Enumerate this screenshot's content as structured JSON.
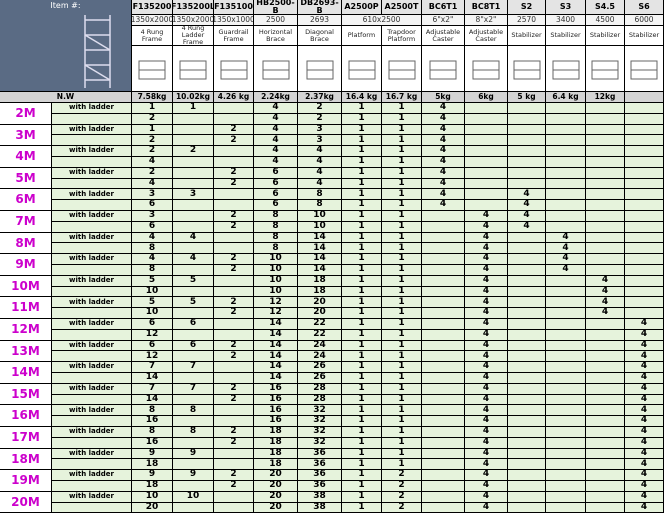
{
  "header": {
    "item_label": "Item #:",
    "weight_label": "N.W",
    "columns": [
      {
        "item": "F135200",
        "size": "1350x2000",
        "description": "4 Rung Frame",
        "weight": "7.58kg"
      },
      {
        "item": "F135200L",
        "size": "1350x2000",
        "description": "4 Rung Ladder Frame",
        "weight": "10.02kg"
      },
      {
        "item": "F135100",
        "size": "1350x1000",
        "description": "Guardrail Frame",
        "weight": "4.26 kg"
      },
      {
        "item": "HB2500-B",
        "size": "2500",
        "description": "Horizontal Brace",
        "weight": "2.24kg"
      },
      {
        "item": "DB2693-B",
        "size": "2693",
        "description": "Diagonal Brace",
        "weight": "2.37kg"
      },
      {
        "item": "A2500P",
        "size": "610x2500",
        "description": "Platform",
        "weight": "16.4 kg"
      },
      {
        "item": "A2500T",
        "size": null,
        "description": "Trapdoor Platform",
        "weight": "16.7 kg"
      },
      {
        "item": "BC6T1",
        "size": "6\"x2\"",
        "description": "Adjustable Caster",
        "weight": "5kg"
      },
      {
        "item": "BC8T1",
        "size": "8\"x2\"",
        "description": "Adjustable Caster",
        "weight": "6kg"
      },
      {
        "item": "S2",
        "size": "2570",
        "description": "Stabilizer",
        "weight": "5 kg"
      },
      {
        "item": "S3",
        "size": "3400",
        "description": "Stabilizer",
        "weight": "6.4 kg"
      },
      {
        "item": "S4.5",
        "size": "4500",
        "description": "Stabilizer",
        "weight": "12kg"
      },
      {
        "item": "S6",
        "size": "6000",
        "description": "Stabilizer",
        "weight": null
      }
    ]
  },
  "groups": [
    {
      "height": "2M",
      "rows": [
        {
          "label": "with ladder",
          "cells": [
            1,
            1,
            null,
            4,
            2,
            1,
            1,
            4,
            null,
            null,
            null,
            null,
            null
          ]
        },
        {
          "cells": [
            2,
            null,
            null,
            4,
            2,
            1,
            1,
            4,
            null,
            null,
            null,
            null,
            null
          ]
        }
      ]
    },
    {
      "height": "3M",
      "rows": [
        {
          "label": "with ladder",
          "cells": [
            1,
            null,
            2,
            4,
            3,
            1,
            1,
            4,
            null,
            null,
            null,
            null,
            null
          ]
        },
        {
          "cells": [
            2,
            null,
            2,
            4,
            3,
            1,
            1,
            4,
            null,
            null,
            null,
            null,
            null
          ]
        }
      ]
    },
    {
      "height": "4M",
      "rows": [
        {
          "label": "with ladder",
          "cells": [
            2,
            2,
            null,
            4,
            4,
            1,
            1,
            4,
            null,
            null,
            null,
            null,
            null
          ]
        },
        {
          "cells": [
            4,
            null,
            null,
            4,
            4,
            1,
            1,
            4,
            null,
            null,
            null,
            null,
            null
          ]
        }
      ]
    },
    {
      "height": "5M",
      "rows": [
        {
          "label": "with ladder",
          "cells": [
            2,
            null,
            2,
            6,
            4,
            1,
            1,
            4,
            null,
            null,
            null,
            null,
            null
          ]
        },
        {
          "cells": [
            4,
            null,
            2,
            6,
            4,
            1,
            1,
            4,
            null,
            null,
            null,
            null,
            null
          ]
        }
      ]
    },
    {
      "height": "6M",
      "rows": [
        {
          "label": "with ladder",
          "cells": [
            3,
            3,
            null,
            6,
            8,
            1,
            1,
            4,
            null,
            4,
            null,
            null,
            null
          ]
        },
        {
          "cells": [
            6,
            null,
            null,
            6,
            8,
            1,
            1,
            4,
            null,
            4,
            null,
            null,
            null
          ]
        }
      ]
    },
    {
      "height": "7M",
      "rows": [
        {
          "label": "with ladder",
          "cells": [
            3,
            null,
            2,
            8,
            10,
            1,
            1,
            null,
            4,
            4,
            null,
            null,
            null
          ]
        },
        {
          "cells": [
            6,
            null,
            2,
            8,
            10,
            1,
            1,
            null,
            4,
            4,
            null,
            null,
            null
          ]
        }
      ]
    },
    {
      "height": "8M",
      "rows": [
        {
          "label": "with ladder",
          "cells": [
            4,
            4,
            null,
            8,
            14,
            1,
            1,
            null,
            4,
            null,
            4,
            null,
            null
          ]
        },
        {
          "cells": [
            8,
            null,
            null,
            8,
            14,
            1,
            1,
            null,
            4,
            null,
            4,
            null,
            null
          ]
        }
      ]
    },
    {
      "height": "9M",
      "rows": [
        {
          "label": "with ladder",
          "cells": [
            4,
            4,
            2,
            10,
            14,
            1,
            1,
            null,
            4,
            null,
            4,
            null,
            null
          ]
        },
        {
          "cells": [
            8,
            null,
            2,
            10,
            14,
            1,
            1,
            null,
            4,
            null,
            4,
            null,
            null
          ]
        }
      ]
    },
    {
      "height": "10M",
      "rows": [
        {
          "label": "with ladder",
          "cells": [
            5,
            5,
            null,
            10,
            18,
            1,
            1,
            null,
            4,
            null,
            null,
            4,
            null
          ]
        },
        {
          "cells": [
            10,
            null,
            null,
            10,
            18,
            1,
            1,
            null,
            4,
            null,
            null,
            4,
            null
          ]
        }
      ]
    },
    {
      "height": "11M",
      "rows": [
        {
          "label": "with ladder",
          "cells": [
            5,
            5,
            2,
            12,
            20,
            1,
            1,
            null,
            4,
            null,
            null,
            4,
            null
          ]
        },
        {
          "cells": [
            10,
            null,
            2,
            12,
            20,
            1,
            1,
            null,
            4,
            null,
            null,
            4,
            null
          ]
        }
      ]
    },
    {
      "height": "12M",
      "rows": [
        {
          "label": "with ladder",
          "cells": [
            6,
            6,
            null,
            14,
            22,
            1,
            1,
            null,
            4,
            null,
            null,
            null,
            4
          ]
        },
        {
          "cells": [
            12,
            null,
            null,
            14,
            22,
            1,
            1,
            null,
            4,
            null,
            null,
            null,
            4
          ]
        }
      ]
    },
    {
      "height": "13M",
      "rows": [
        {
          "label": "with ladder",
          "cells": [
            6,
            6,
            2,
            14,
            24,
            1,
            1,
            null,
            4,
            null,
            null,
            null,
            4
          ]
        },
        {
          "cells": [
            12,
            null,
            2,
            14,
            24,
            1,
            1,
            null,
            4,
            null,
            null,
            null,
            4
          ]
        }
      ]
    },
    {
      "height": "14M",
      "rows": [
        {
          "label": "with ladder",
          "cells": [
            7,
            7,
            null,
            14,
            26,
            1,
            1,
            null,
            4,
            null,
            null,
            null,
            4
          ]
        },
        {
          "cells": [
            14,
            null,
            null,
            14,
            26,
            1,
            1,
            null,
            4,
            null,
            null,
            null,
            4
          ]
        }
      ]
    },
    {
      "height": "15M",
      "rows": [
        {
          "label": "with ladder",
          "cells": [
            7,
            7,
            2,
            16,
            28,
            1,
            1,
            null,
            4,
            null,
            null,
            null,
            4
          ]
        },
        {
          "cells": [
            14,
            null,
            2,
            16,
            28,
            1,
            1,
            null,
            4,
            null,
            null,
            null,
            4
          ]
        }
      ]
    },
    {
      "height": "16M",
      "rows": [
        {
          "label": "with ladder",
          "cells": [
            8,
            8,
            null,
            16,
            32,
            1,
            1,
            null,
            4,
            null,
            null,
            null,
            4
          ]
        },
        {
          "cells": [
            16,
            null,
            null,
            16,
            32,
            1,
            1,
            null,
            4,
            null,
            null,
            null,
            4
          ]
        }
      ]
    },
    {
      "height": "17M",
      "rows": [
        {
          "label": "with ladder",
          "cells": [
            8,
            8,
            2,
            18,
            32,
            1,
            1,
            null,
            4,
            null,
            null,
            null,
            4
          ]
        },
        {
          "cells": [
            16,
            null,
            2,
            18,
            32,
            1,
            1,
            null,
            4,
            null,
            null,
            null,
            4
          ]
        }
      ]
    },
    {
      "height": "18M",
      "rows": [
        {
          "label": "with ladder",
          "cells": [
            9,
            9,
            null,
            18,
            36,
            1,
            1,
            null,
            4,
            null,
            null,
            null,
            4
          ]
        },
        {
          "cells": [
            18,
            null,
            null,
            18,
            36,
            1,
            1,
            null,
            4,
            null,
            null,
            null,
            4
          ]
        }
      ]
    },
    {
      "height": "19M",
      "rows": [
        {
          "label": "with ladder",
          "cells": [
            9,
            9,
            2,
            20,
            36,
            1,
            2,
            null,
            4,
            null,
            null,
            null,
            4
          ]
        },
        {
          "cells": [
            18,
            null,
            2,
            20,
            36,
            1,
            2,
            null,
            4,
            null,
            null,
            null,
            4
          ]
        }
      ]
    },
    {
      "height": "20M",
      "rows": [
        {
          "label": "with ladder",
          "cells": [
            10,
            10,
            null,
            20,
            38,
            1,
            2,
            null,
            4,
            null,
            null,
            null,
            4
          ]
        },
        {
          "cells": [
            20,
            null,
            null,
            20,
            38,
            1,
            2,
            null,
            4,
            null,
            null,
            null,
            4
          ]
        }
      ]
    }
  ]
}
